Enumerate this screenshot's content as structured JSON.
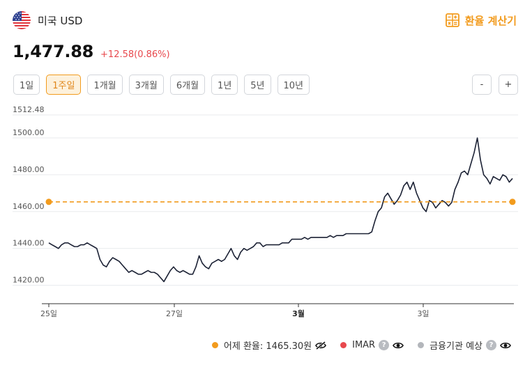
{
  "header": {
    "currency_label": "미국 USD",
    "flag_icon": "us-flag-icon",
    "calc_label": "환율 계산기",
    "calc_icon": "calculator-icon",
    "accent_color": "#f29b1d"
  },
  "rate": {
    "value": "1,477.88",
    "change": "+12.58(0.86%)",
    "change_color": "#e8484d"
  },
  "ranges": [
    {
      "label": "1일",
      "active": false
    },
    {
      "label": "1주일",
      "active": true
    },
    {
      "label": "1개월",
      "active": false
    },
    {
      "label": "3개월",
      "active": false
    },
    {
      "label": "6개월",
      "active": false
    },
    {
      "label": "1년",
      "active": false
    },
    {
      "label": "5년",
      "active": false
    },
    {
      "label": "10년",
      "active": false
    }
  ],
  "zoom": {
    "minus": "-",
    "plus": "+"
  },
  "chart_data": {
    "type": "line",
    "ylim": [
      1410,
      1512.48
    ],
    "y_ticks": [
      "1512.48",
      "1500.00",
      "1480.00",
      "1460.00",
      "1440.00",
      "1420.00"
    ],
    "x_ticks": [
      {
        "label": "25일",
        "bold": false
      },
      {
        "label": "27일",
        "bold": false
      },
      {
        "label": "3월",
        "bold": true
      },
      {
        "label": "3일",
        "bold": false
      }
    ],
    "grid": true,
    "line_color": "#1c2235",
    "reference": {
      "value": 1465.3,
      "color": "#f29b1d"
    },
    "series": [
      {
        "values": [
          1443,
          1442,
          1441,
          1440,
          1442,
          1443,
          1443,
          1442,
          1441,
          1441,
          1442,
          1442,
          1443,
          1442,
          1441,
          1440,
          1434,
          1431,
          1430,
          1433,
          1435,
          1434,
          1433,
          1431,
          1429,
          1427,
          1428,
          1427,
          1426,
          1426,
          1427,
          1428,
          1427,
          1427,
          1426,
          1424,
          1422,
          1425,
          1428,
          1430,
          1428,
          1427,
          1428,
          1427,
          1426,
          1426,
          1430,
          1436,
          1432,
          1430,
          1429,
          1432,
          1433,
          1434,
          1433,
          1434,
          1437,
          1440,
          1436,
          1434,
          1438,
          1440,
          1439,
          1440,
          1441,
          1443,
          1443,
          1441,
          1442,
          1442,
          1442,
          1442,
          1442,
          1443,
          1443,
          1443,
          1445,
          1445,
          1445,
          1445,
          1446,
          1445,
          1446,
          1446,
          1446,
          1446,
          1446,
          1446,
          1447,
          1446,
          1447,
          1447,
          1447,
          1448,
          1448,
          1448,
          1448,
          1448,
          1448,
          1448,
          1448,
          1449,
          1455,
          1460,
          1462,
          1468,
          1470,
          1467,
          1464,
          1466,
          1469,
          1474,
          1476,
          1472,
          1476,
          1470,
          1466,
          1462,
          1460,
          1466,
          1465,
          1462,
          1464,
          1466,
          1465,
          1463,
          1465,
          1472,
          1476,
          1481,
          1482,
          1480,
          1486,
          1492,
          1500,
          1488,
          1480,
          1478,
          1475,
          1479,
          1478,
          1477,
          1480,
          1479,
          1476,
          1478
        ]
      }
    ]
  },
  "legend": {
    "items": [
      {
        "label": "어제 환율: 1465.30원",
        "color": "#f29b1d",
        "help": false,
        "eye_icon": "eye-off-icon"
      },
      {
        "label": "IMAR",
        "color": "#e8484d",
        "help": true,
        "eye_icon": "eye-icon"
      },
      {
        "label": "금융기관 예상",
        "color": "#b3b6bb",
        "help": true,
        "eye_icon": "eye-icon"
      }
    ],
    "help_glyph": "?"
  }
}
